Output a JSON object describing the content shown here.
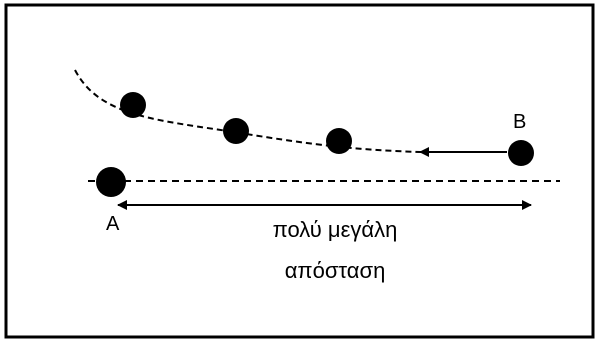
{
  "labels": {
    "point_a": "A",
    "point_b": "B",
    "distance_line1": "πολύ μεγάλη",
    "distance_line2": "απόσταση"
  },
  "colors": {
    "ink": "#000000",
    "background": "#ffffff"
  }
}
